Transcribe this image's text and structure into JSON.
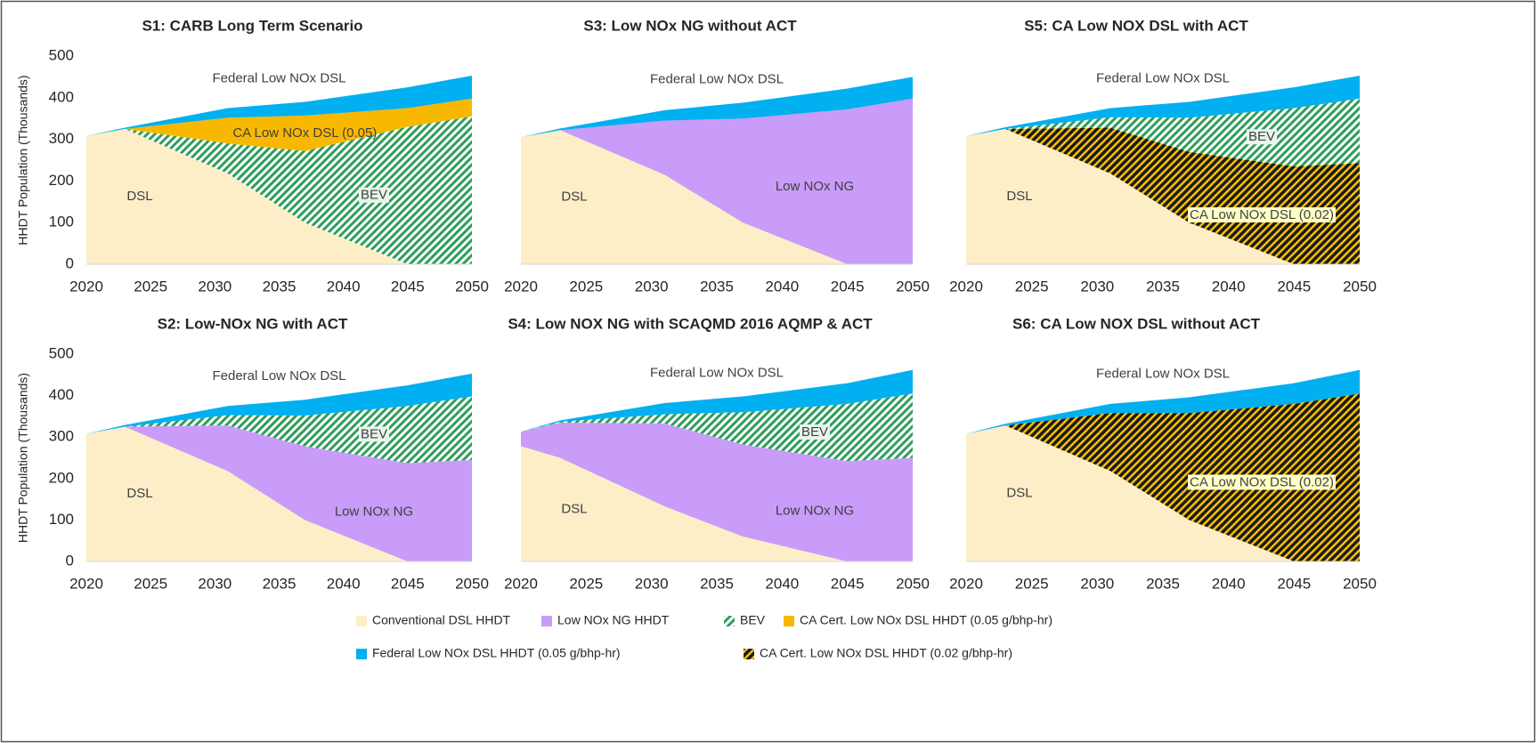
{
  "chart_data": [
    {
      "type": "area",
      "title": "S1: CARB Long Term Scenario",
      "ylabel": "HHDT Population (Thousands)",
      "x": [
        2020,
        2023,
        2031,
        2037,
        2045,
        2050
      ],
      "xlim": [
        2020,
        2050
      ],
      "xticks": [
        2020,
        2025,
        2030,
        2035,
        2040,
        2045,
        2050
      ],
      "ylim": [
        0,
        500
      ],
      "yticks": [
        0,
        100,
        200,
        300,
        400,
        500
      ],
      "series": [
        {
          "name": "Conventional DSL HHDT",
          "label": "DSL",
          "color": "#fdeec8",
          "values": [
            308,
            325,
            218,
            100,
            0,
            0
          ]
        },
        {
          "name": "BEV",
          "label": "BEV",
          "color": "#2e9e5b",
          "pattern": "hatch",
          "values": [
            0,
            0,
            72,
            172,
            330,
            355
          ]
        },
        {
          "name": "CA Cert. Low NOx DSL HHDT (0.05 g/bhp-hr)",
          "label": "CA Low NOx DSL (0.05)",
          "color": "#f9b800",
          "values": [
            0,
            0,
            62,
            85,
            45,
            43
          ]
        },
        {
          "name": "Federal Low NOx DSL HHDT (0.05 g/bhp-hr)",
          "label": "Federal Low NOx DSL",
          "color": "#00b0f0",
          "values": [
            0,
            3,
            23,
            33,
            50,
            55
          ]
        }
      ]
    },
    {
      "type": "area",
      "title": "S3: Low NOx NG without ACT",
      "x": [
        2020,
        2023,
        2031,
        2037,
        2045,
        2050
      ],
      "xlim": [
        2020,
        2050
      ],
      "xticks": [
        2020,
        2025,
        2030,
        2035,
        2040,
        2045,
        2050
      ],
      "ylim": [
        0,
        500
      ],
      "series": [
        {
          "name": "Conventional DSL HHDT",
          "label": "DSL",
          "color": "#fdeec8",
          "values": [
            305,
            322,
            215,
            100,
            0,
            0
          ]
        },
        {
          "name": "Low NOx NG HHDT",
          "label": "Low NOx NG",
          "color": "#c89cf8",
          "values": [
            0,
            0,
            130,
            250,
            372,
            398
          ]
        },
        {
          "name": "Federal Low NOx DSL HHDT (0.05 g/bhp-hr)",
          "label": "Federal Low NOx DSL",
          "color": "#00b0f0",
          "values": [
            0,
            4,
            25,
            38,
            50,
            52
          ]
        }
      ]
    },
    {
      "type": "area",
      "title": "S5: CA Low NOX DSL with ACT",
      "x": [
        2020,
        2023,
        2031,
        2037,
        2045,
        2050
      ],
      "xlim": [
        2020,
        2050
      ],
      "xticks": [
        2020,
        2025,
        2030,
        2035,
        2040,
        2045,
        2050
      ],
      "ylim": [
        0,
        500
      ],
      "series": [
        {
          "name": "Conventional DSL HHDT",
          "label": "DSL",
          "color": "#fdeec8",
          "values": [
            308,
            325,
            218,
            100,
            0,
            0
          ]
        },
        {
          "name": "CA Cert. Low NOx DSL HHDT (0.02 g/bhp-hr)",
          "label": "CA Low NOx DSL (0.02)",
          "color": "#f9c000",
          "pattern": "dark-hatch",
          "values": [
            0,
            0,
            110,
            170,
            235,
            243
          ]
        },
        {
          "name": "BEV",
          "label": "BEV",
          "color": "#2e9e5b",
          "pattern": "hatch",
          "values": [
            0,
            0,
            25,
            82,
            140,
            155
          ]
        },
        {
          "name": "Federal Low NOx DSL HHDT (0.05 g/bhp-hr)",
          "label": "Federal Low NOx DSL",
          "color": "#00b0f0",
          "values": [
            0,
            4,
            22,
            38,
            50,
            55
          ]
        }
      ]
    },
    {
      "type": "area",
      "title": "S2: Low-NOx NG with ACT",
      "ylabel": "HHDT Population (Thousands)",
      "x": [
        2020,
        2023,
        2031,
        2037,
        2045,
        2050
      ],
      "xlim": [
        2020,
        2050
      ],
      "xticks": [
        2020,
        2025,
        2030,
        2035,
        2040,
        2045,
        2050
      ],
      "ylim": [
        0,
        500
      ],
      "yticks": [
        0,
        100,
        200,
        300,
        400,
        500
      ],
      "series": [
        {
          "name": "Conventional DSL HHDT",
          "label": "DSL",
          "color": "#fdeec8",
          "values": [
            308,
            325,
            218,
            100,
            0,
            0
          ]
        },
        {
          "name": "Low NOx NG HHDT",
          "label": "Low NOx NG",
          "color": "#c89cf8",
          "values": [
            0,
            0,
            110,
            178,
            237,
            245
          ]
        },
        {
          "name": "BEV",
          "label": "BEV",
          "color": "#2e9e5b",
          "pattern": "hatch",
          "values": [
            0,
            0,
            25,
            74,
            138,
            153
          ]
        },
        {
          "name": "Federal Low NOx DSL HHDT (0.05 g/bhp-hr)",
          "label": "Federal Low NOx DSL",
          "color": "#00b0f0",
          "values": [
            0,
            4,
            22,
            38,
            50,
            55
          ]
        }
      ]
    },
    {
      "type": "area",
      "title": "S4: Low NOX NG with SCAQMD 2016 AQMP & ACT",
      "x": [
        2020,
        2023,
        2031,
        2037,
        2045,
        2050
      ],
      "xlim": [
        2020,
        2050
      ],
      "xticks": [
        2020,
        2025,
        2030,
        2035,
        2040,
        2045,
        2050
      ],
      "ylim": [
        0,
        500
      ],
      "series": [
        {
          "name": "Conventional DSL HHDT",
          "label": "DSL",
          "color": "#fdeec8",
          "values": [
            278,
            250,
            133,
            60,
            0,
            0
          ]
        },
        {
          "name": "Low NOx NG HHDT",
          "label": "Low NOx NG",
          "color": "#c89cf8",
          "values": [
            35,
            85,
            200,
            222,
            242,
            250
          ]
        },
        {
          "name": "BEV",
          "label": "BEV",
          "color": "#2e9e5b",
          "pattern": "hatch",
          "values": [
            0,
            2,
            22,
            78,
            138,
            155
          ]
        },
        {
          "name": "Federal Low NOx DSL HHDT (0.05 g/bhp-hr)",
          "label": "Federal Low NOx DSL",
          "color": "#00b0f0",
          "values": [
            0,
            3,
            27,
            38,
            50,
            57
          ]
        }
      ]
    },
    {
      "type": "area",
      "title": "S6: CA Low NOX DSL without ACT",
      "x": [
        2020,
        2023,
        2031,
        2037,
        2045,
        2050
      ],
      "xlim": [
        2020,
        2050
      ],
      "xticks": [
        2020,
        2025,
        2030,
        2035,
        2040,
        2045,
        2050
      ],
      "ylim": [
        0,
        500
      ],
      "series": [
        {
          "name": "Conventional DSL HHDT",
          "label": "DSL",
          "color": "#fdeec8",
          "values": [
            308,
            328,
            218,
            100,
            0,
            0
          ]
        },
        {
          "name": "CA Cert. Low NOx DSL HHDT (0.02 g/bhp-hr)",
          "label": "CA Low NOx DSL (0.02)",
          "color": "#f9c000",
          "pattern": "dark-hatch",
          "values": [
            0,
            0,
            140,
            258,
            380,
            405
          ]
        },
        {
          "name": "Federal Low NOx DSL HHDT (0.05 g/bhp-hr)",
          "label": "Federal Low NOx DSL",
          "color": "#00b0f0",
          "values": [
            0,
            4,
            22,
            38,
            50,
            57
          ]
        }
      ]
    }
  ],
  "legend": [
    {
      "name": "Conventional DSL HHDT",
      "color": "#fdeec8"
    },
    {
      "name": "Low NOx NG HHDT",
      "color": "#c89cf8"
    },
    {
      "name": "BEV",
      "color": "#2e9e5b",
      "pattern": "hatch"
    },
    {
      "name": "CA Cert. Low NOx DSL HHDT (0.05 g/bhp-hr)",
      "color": "#f9b800"
    },
    {
      "name": "Federal Low NOx DSL HHDT (0.05 g/bhp-hr)",
      "color": "#00b0f0"
    },
    {
      "name": "CA Cert. Low NOx DSL HHDT (0.02 g/bhp-hr)",
      "color": "#f9c000",
      "pattern": "dark-hatch"
    }
  ]
}
